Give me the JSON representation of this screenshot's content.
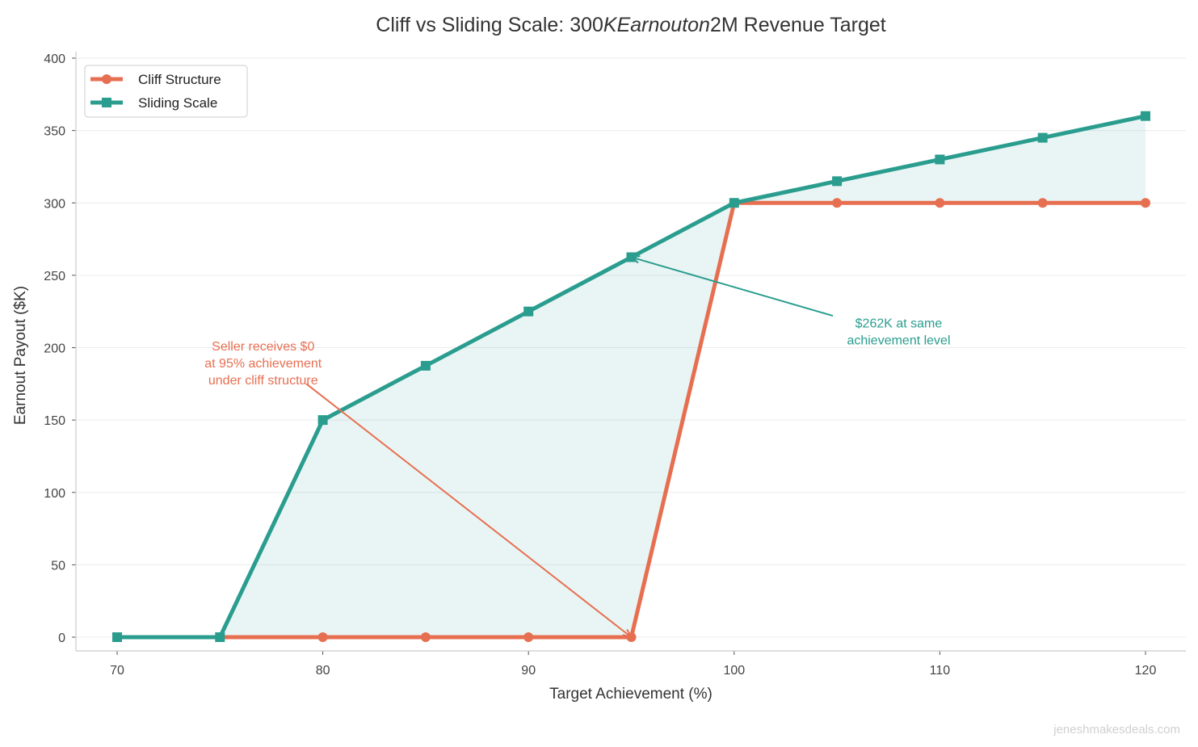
{
  "chart_data": {
    "type": "line",
    "title": {
      "prefix": "Cliff vs Sliding Scale: 300",
      "italic": "KEarnouton",
      "suffix": "2M Revenue Target"
    },
    "xlabel": "Target Achievement (%)",
    "ylabel": "Earnout Payout ($K)",
    "xlim": [
      68,
      122
    ],
    "ylim": [
      -10,
      400
    ],
    "xticks": [
      70,
      80,
      90,
      100,
      110,
      120
    ],
    "yticks": [
      0,
      50,
      100,
      150,
      200,
      250,
      300,
      350,
      400
    ],
    "grid": "horizontal",
    "legend_position": "top-left",
    "x": [
      70,
      75,
      80,
      85,
      90,
      95,
      100,
      105,
      110,
      115,
      120
    ],
    "series": [
      {
        "name": "Cliff Structure",
        "color": "#e76f51",
        "marker": "circle",
        "values": [
          0,
          0,
          0,
          0,
          0,
          0,
          300,
          300,
          300,
          300,
          300
        ]
      },
      {
        "name": "Sliding Scale",
        "color": "#2a9d8f",
        "marker": "square",
        "values": [
          0,
          0,
          150,
          187.5,
          225,
          262.5,
          300,
          315,
          330,
          345,
          360
        ]
      }
    ],
    "fill_between": {
      "color": "#2a9d8f",
      "opacity": 0.1
    },
    "annotations": [
      {
        "lines": [
          "Seller receives $0",
          "at 95% achievement",
          "under cliff structure"
        ],
        "color": "#e76f51",
        "text_at": [
          77.1,
          198
        ],
        "arrow_from": [
          79.2,
          175
        ],
        "arrow_to": [
          95,
          0
        ]
      },
      {
        "lines": [
          "$262K at same",
          "achievement level"
        ],
        "color": "#2a9d8f",
        "text_at": [
          108,
          214
        ],
        "arrow_from": [
          104.8,
          222
        ],
        "arrow_to": [
          95,
          262.5
        ]
      }
    ]
  },
  "watermark": "jeneshmakesdeals.com"
}
